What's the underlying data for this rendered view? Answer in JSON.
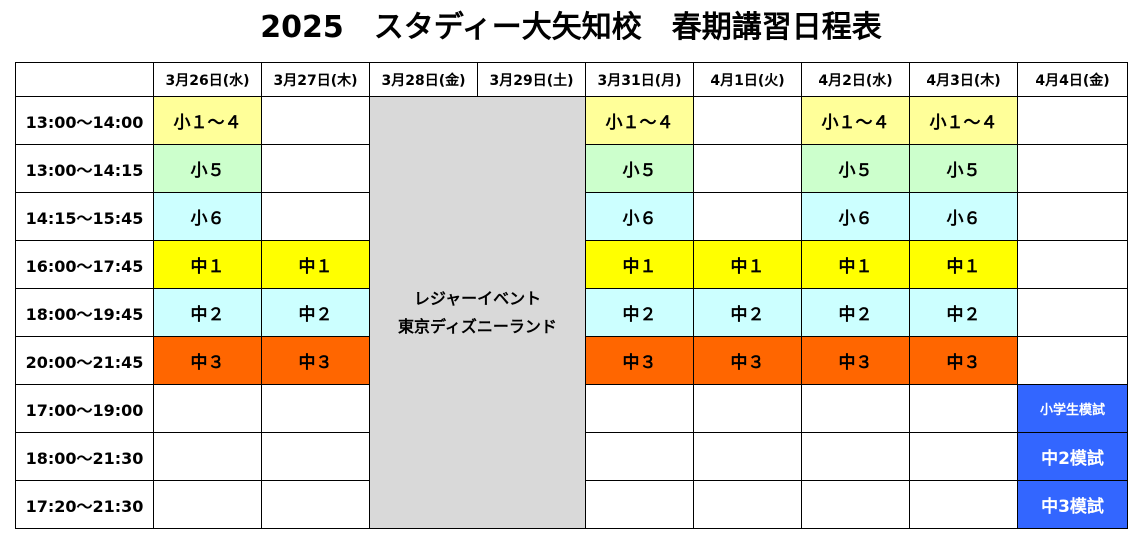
{
  "title": "2025　スタディー大矢知校　春期講習日程表",
  "header": [
    "3月26日(水)",
    "3月27日(木)",
    "3月28日(金)",
    "3月29日(土)",
    "3月31日(月)",
    "4月1日(火)",
    "4月2日(水)",
    "4月3日(木)",
    "4月4日(金)"
  ],
  "event": {
    "lines": [
      "レジャーイベント",
      "東京ディズニーランド"
    ],
    "color": "#d9d9d9"
  },
  "rows": [
    {
      "time": "13:00～14:00",
      "cells": [
        {
          "text": "小１～４",
          "color": "#ffff99"
        },
        null,
        {
          "text": "小１～４",
          "color": "#ffff99"
        },
        null,
        {
          "text": "小１～４",
          "color": "#ffff99"
        },
        {
          "text": "小１～４",
          "color": "#ffff99"
        },
        null
      ]
    },
    {
      "time": "13:00～14:15",
      "cells": [
        {
          "text": "小５",
          "color": "#ccffcc"
        },
        null,
        {
          "text": "小５",
          "color": "#ccffcc"
        },
        null,
        {
          "text": "小５",
          "color": "#ccffcc"
        },
        {
          "text": "小５",
          "color": "#ccffcc"
        },
        null
      ]
    },
    {
      "time": "14:15～15:45",
      "cells": [
        {
          "text": "小６",
          "color": "#ccffff"
        },
        null,
        {
          "text": "小６",
          "color": "#ccffff"
        },
        null,
        {
          "text": "小６",
          "color": "#ccffff"
        },
        {
          "text": "小６",
          "color": "#ccffff"
        },
        null
      ]
    },
    {
      "time": "16:00～17:45",
      "cells": [
        {
          "text": "中１",
          "color": "#ffff00"
        },
        {
          "text": "中１",
          "color": "#ffff00"
        },
        {
          "text": "中１",
          "color": "#ffff00"
        },
        {
          "text": "中１",
          "color": "#ffff00"
        },
        {
          "text": "中１",
          "color": "#ffff00"
        },
        {
          "text": "中１",
          "color": "#ffff00"
        },
        null
      ]
    },
    {
      "time": "18:00～19:45",
      "cells": [
        {
          "text": "中２",
          "color": "#ccffff"
        },
        {
          "text": "中２",
          "color": "#ccffff"
        },
        {
          "text": "中２",
          "color": "#ccffff"
        },
        {
          "text": "中２",
          "color": "#ccffff"
        },
        {
          "text": "中２",
          "color": "#ccffff"
        },
        {
          "text": "中２",
          "color": "#ccffff"
        },
        null
      ]
    },
    {
      "time": "20:00～21:45",
      "cells": [
        {
          "text": "中３",
          "color": "#ff6600"
        },
        {
          "text": "中３",
          "color": "#ff6600"
        },
        {
          "text": "中３",
          "color": "#ff6600"
        },
        {
          "text": "中３",
          "color": "#ff6600"
        },
        {
          "text": "中３",
          "color": "#ff6600"
        },
        {
          "text": "中３",
          "color": "#ff6600"
        },
        null
      ]
    },
    {
      "time": "17:00～19:00",
      "cells": [
        null,
        null,
        null,
        null,
        null,
        null,
        {
          "text": "小学生模試",
          "color": "#3366ff"
        }
      ]
    },
    {
      "time": "18:00～21:30",
      "cells": [
        null,
        null,
        null,
        null,
        null,
        null,
        {
          "text": "中2模試",
          "color": "#3366ff"
        }
      ]
    },
    {
      "time": "17:20～21:30",
      "cells": [
        null,
        null,
        null,
        null,
        null,
        null,
        {
          "text": "中3模試",
          "color": "#3366ff"
        }
      ]
    }
  ]
}
